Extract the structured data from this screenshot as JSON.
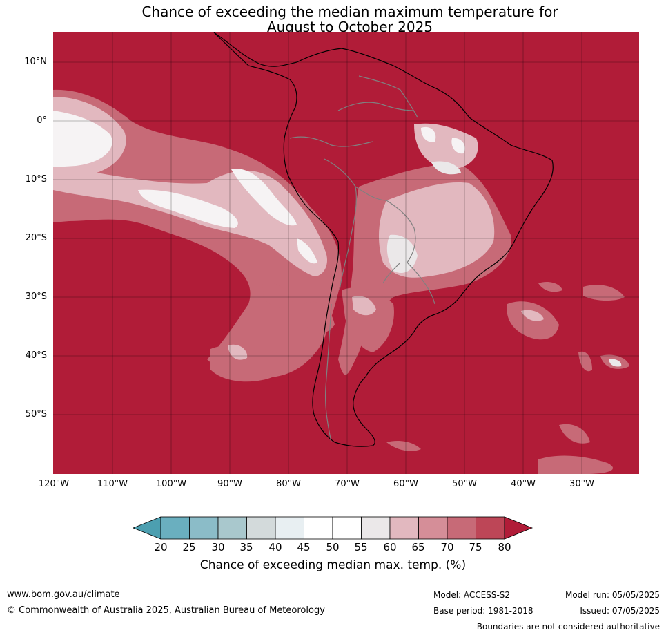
{
  "title": {
    "line1": "Chance of exceeding the median maximum temperature for",
    "line2": "August to October 2025"
  },
  "map": {
    "region": "South America",
    "lat_labels": [
      "10°N",
      "0°",
      "10°S",
      "20°S",
      "30°S",
      "40°S",
      "50°S"
    ],
    "lon_labels": [
      "120°W",
      "110°W",
      "100°W",
      "90°W",
      "80°W",
      "70°W",
      "60°W",
      "50°W",
      "40°W",
      "30°W"
    ],
    "background_color": "#b11c38",
    "land_border_color": "#000000",
    "country_border_color": "#808080"
  },
  "colorbar": {
    "ticks": [
      "20",
      "25",
      "30",
      "35",
      "40",
      "45",
      "50",
      "55",
      "60",
      "65",
      "70",
      "75",
      "80"
    ],
    "colors": [
      "#4c9fb0",
      "#6aafbf",
      "#8bbcc8",
      "#a9c8cd",
      "#d3dadb",
      "#e8eff2",
      "#ffffff",
      "#ffffff",
      "#ebe8e9",
      "#e2b8bf",
      "#d58e98",
      "#c76a77",
      "#bd4657",
      "#b11c38"
    ],
    "label": "Chance of exceeding median max. temp. (%)"
  },
  "footer": {
    "website": "www.bom.gov.au/climate",
    "copyright": "© Commonwealth of Australia 2025, Australian Bureau of Meteorology",
    "model": "Model: ACCESS-S2",
    "base_period": "Base period: 1981-2018",
    "model_run": "Model run: 05/05/2025",
    "issued": "Issued: 07/05/2025",
    "disclaimer": "Boundaries are not considered authoritative"
  }
}
